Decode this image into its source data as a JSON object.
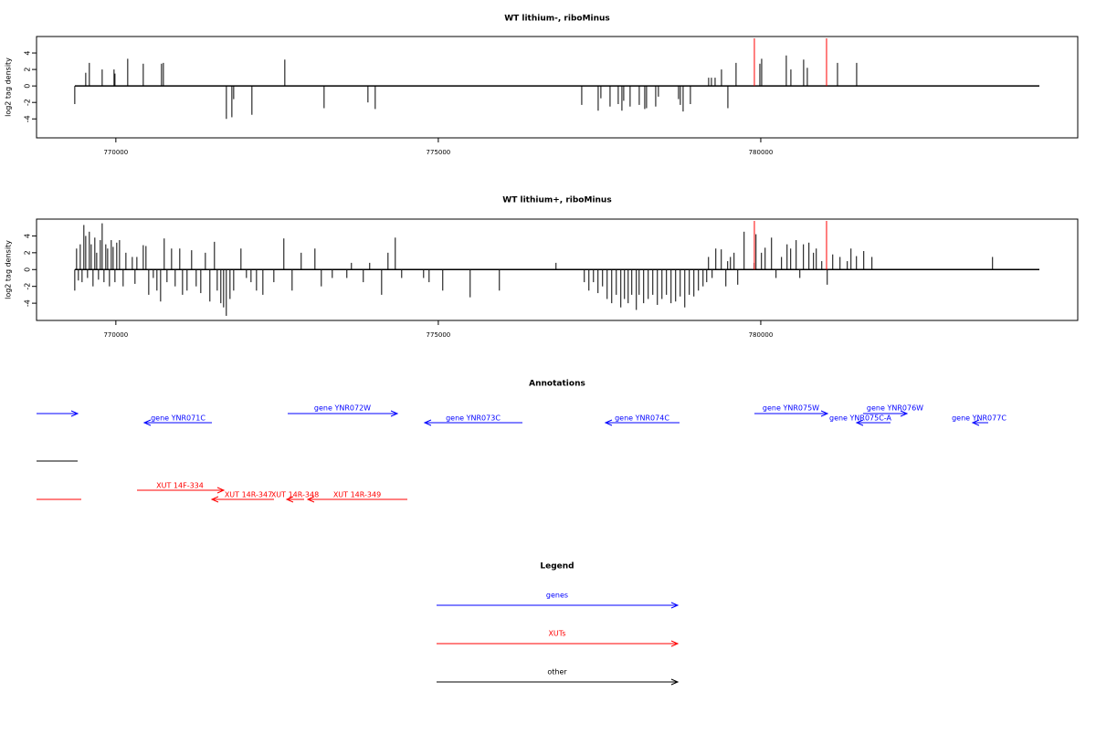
{
  "chart_data": [
    {
      "type": "spike",
      "title": "WT lithium-, riboMinus",
      "ylabel": "log2 tag density",
      "color": "#000000",
      "vline_color": "#ff0000",
      "xlim": [
        768770,
        784915
      ],
      "ylim": [
        -6.3,
        6
      ],
      "xticks": [
        770000,
        775000,
        780000
      ],
      "yticks": [
        -4,
        -2,
        0,
        2,
        4
      ],
      "x": [
        769363,
        769533,
        769589,
        769788,
        769972,
        769986,
        770184,
        770425,
        770708,
        770737,
        771714,
        771799,
        771827,
        772110,
        772620,
        773229,
        773909,
        774022,
        777224,
        777479,
        777521,
        777663,
        777790,
        777847,
        777875,
        777974,
        778116,
        778201,
        778229,
        778371,
        778413,
        778725,
        778753,
        778796,
        778909,
        779192,
        779235,
        779292,
        779391,
        779490,
        779617,
        779986,
        780014,
        780396,
        780467,
        780665,
        780722,
        781190,
        781487
      ],
      "values": [
        -2.2,
        1.6,
        2.8,
        2,
        2,
        1.5,
        3.3,
        2.7,
        2.7,
        2.8,
        -4,
        -3.8,
        -1.6,
        -3.5,
        3.2,
        -2.7,
        -2,
        -2.8,
        -2.3,
        -3,
        -1.5,
        -2.5,
        -2.2,
        -3,
        -1.8,
        -2.5,
        -2.3,
        -2.8,
        -2.7,
        -2.5,
        -1.3,
        -1.6,
        -2.3,
        -3.1,
        -2.2,
        1,
        1,
        1,
        2,
        -2.7,
        2.8,
        2.7,
        3.3,
        3.7,
        2,
        3.2,
        2.2,
        2.8,
        2.8
      ],
      "vlines": [
        779901,
        781020
      ]
    },
    {
      "type": "spike",
      "title": "WT lithium+, riboMinus",
      "ylabel": "log2 tag density",
      "color": "#000000",
      "vline_color": "#ff0000",
      "xlim": [
        768770,
        784915
      ],
      "ylim": [
        -6.05,
        6
      ],
      "xticks": [
        770000,
        775000,
        780000
      ],
      "yticks": [
        -4,
        -2,
        0,
        2,
        4
      ],
      "x": [
        769363,
        769391,
        769419,
        769448,
        769476,
        769504,
        769533,
        769561,
        769589,
        769618,
        769646,
        769674,
        769703,
        769731,
        769759,
        769788,
        769816,
        769844,
        769873,
        769901,
        769929,
        769958,
        769986,
        770014,
        770057,
        770113,
        770156,
        770255,
        770297,
        770326,
        770425,
        770467,
        770510,
        770581,
        770637,
        770694,
        770750,
        770793,
        770864,
        770920,
        770991,
        771034,
        771104,
        771175,
        771246,
        771317,
        771388,
        771458,
        771529,
        771572,
        771628,
        771671,
        771713,
        771770,
        771827,
        771940,
        772025,
        772096,
        772181,
        772280,
        772450,
        772605,
        772733,
        772874,
        773087,
        773186,
        773356,
        773582,
        773653,
        773837,
        773936,
        774121,
        774220,
        774333,
        774432,
        774772,
        774857,
        775069,
        775494,
        775947,
        776825,
        777264,
        777335,
        777406,
        777476,
        777547,
        777618,
        777689,
        777760,
        777830,
        777887,
        777944,
        778000,
        778071,
        778114,
        778184,
        778255,
        778326,
        778397,
        778468,
        778538,
        778609,
        778680,
        778751,
        778822,
        778892,
        778963,
        779034,
        779105,
        779162,
        779190,
        779246,
        779303,
        779388,
        779459,
        779487,
        779530,
        779586,
        779643,
        779742,
        779898,
        779926,
        780011,
        780068,
        780167,
        780237,
        780322,
        780408,
        780464,
        780549,
        780606,
        780662,
        780747,
        780818,
        780861,
        780946,
        781031,
        781116,
        781229,
        781342,
        781399,
        781484,
        781597,
        781724,
        783594
      ],
      "values": [
        -2.5,
        2.5,
        -1.3,
        3,
        -1.5,
        5.3,
        4,
        -1,
        4.5,
        3,
        -2,
        3.8,
        2,
        -1.2,
        3.5,
        5.5,
        -1.5,
        3,
        2.5,
        -2,
        3.5,
        2.7,
        -1.5,
        3.2,
        3.5,
        -2,
        2,
        1.5,
        -1.7,
        1.5,
        2.9,
        2.8,
        -3,
        -1,
        -2.5,
        -3.8,
        3.7,
        -1.5,
        2.5,
        -2,
        2.5,
        -3,
        -2.5,
        2.3,
        -2,
        -2.8,
        2,
        -3.8,
        3.3,
        -2.5,
        -4,
        -4.5,
        -5.5,
        -3.5,
        -2.5,
        2.5,
        -1,
        -1.5,
        -2.5,
        -3,
        -1.5,
        3.7,
        -2.5,
        2,
        2.5,
        -2,
        -1,
        -1,
        0.8,
        -1.5,
        0.8,
        -3,
        2,
        3.8,
        -1,
        -1,
        -1.5,
        -2.5,
        -3.3,
        -2.5,
        0.8,
        -1.5,
        -2.5,
        -1.5,
        -2.8,
        -2,
        -3.5,
        -4,
        -3,
        -4.5,
        -3.5,
        -4,
        -3,
        -4.8,
        -3,
        -4,
        -3.5,
        -3,
        -4.2,
        -3.5,
        -3,
        -4,
        -3.8,
        -3.2,
        -4.5,
        -3,
        -3.2,
        -2.5,
        -2,
        -1.5,
        1.5,
        -1,
        2.5,
        2.4,
        -2,
        1,
        1.5,
        2,
        -1.8,
        4.5,
        0.8,
        4.2,
        2,
        2.6,
        3.8,
        -1,
        1.5,
        3,
        2.5,
        3.5,
        -1,
        3,
        3.2,
        2,
        2.5,
        1,
        -1.8,
        1.8,
        1.5,
        1,
        2.5,
        1.6,
        2.2,
        1.5,
        1.5
      ],
      "vlines": [
        779901,
        781020
      ]
    }
  ],
  "annotations": {
    "title": "Annotations",
    "genes": [
      "gene YNR071C",
      "gene YNR072W",
      "gene YNR073C",
      "gene YNR074C",
      "gene YNR075W",
      "gene YNR075C-A",
      "gene YNR076W",
      "gene YNR077C"
    ],
    "xuts": [
      "XUT 14F-334",
      "XUT 14R-347",
      "XUT 14R-348",
      "XUT 14R-349"
    ]
  },
  "legend": {
    "title": "Legend",
    "items": [
      "genes",
      "XUTs",
      "other"
    ]
  }
}
